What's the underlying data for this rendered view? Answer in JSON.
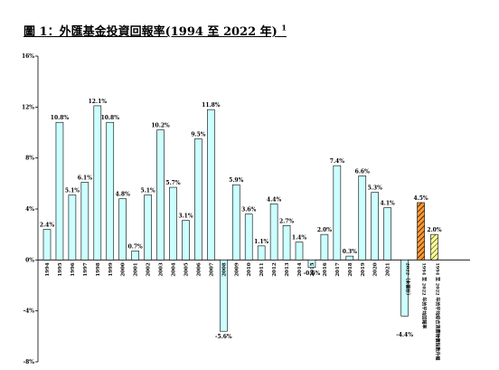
{
  "chart_data": {
    "type": "bar",
    "title": "圖 1：外匯基金投資回報率(1994 至 2022 年)",
    "title_note": "1",
    "ylim": [
      -8,
      16
    ],
    "yticks": [
      -8,
      -4,
      0,
      4,
      8,
      12,
      16
    ],
    "ytick_labels": [
      "-8%",
      "-4%",
      "0%",
      "4%",
      "8%",
      "12%",
      "16%"
    ],
    "grid": false,
    "categories": [
      "1994",
      "1995",
      "1996",
      "1997",
      "1998",
      "1999",
      "2000",
      "2001",
      "2002",
      "2003",
      "2004",
      "2005",
      "2006",
      "2007",
      "2008",
      "2009",
      "2010",
      "2011",
      "2012",
      "2013",
      "2014",
      "2015",
      "2016",
      "2017",
      "2018",
      "2019",
      "2020",
      "2021"
    ],
    "values": [
      2.4,
      10.8,
      5.1,
      6.1,
      12.1,
      10.8,
      4.8,
      0.7,
      5.1,
      10.2,
      5.7,
      3.1,
      9.5,
      11.8,
      -5.6,
      5.9,
      3.6,
      1.1,
      4.4,
      2.7,
      1.4,
      -0.6,
      2.0,
      7.4,
      0.3,
      6.6,
      5.3,
      4.1
    ],
    "value_labels": [
      "2.4%",
      "10.8%",
      "5.1%",
      "6.1%",
      "12.1%",
      "10.8%",
      "4.8%",
      "0.7%",
      "5.1%",
      "10.2%",
      "5.7%",
      "3.1%",
      "9.5%",
      "11.8%",
      "-5.6%",
      "5.9%",
      "3.6%",
      "1.1%",
      "4.4%",
      "2.7%",
      "1.4%",
      "-0.6%",
      "2.0%",
      "7.4%",
      "0.3%",
      "6.6%",
      "5.3%",
      "4.1%"
    ],
    "extra_bars": [
      {
        "category": "2022（未審計）",
        "value": -4.4,
        "value_label": "-4.4%",
        "style": "plain"
      },
      {
        "category": "1994 至 2022 年的平均回報率",
        "value": 4.5,
        "value_label": "4.5%",
        "style": "hatched-orange"
      },
      {
        "category": "1994 至 2022 年的平均綜合消費物價指數升幅",
        "value": 2.0,
        "value_label": "2.0%",
        "style": "hatched-yellow"
      }
    ],
    "colors": {
      "bar_fill": "#ccffff",
      "bar_stroke": "#000000",
      "avg_return_fill": "#ff9933",
      "avg_cpi_fill": "#ffff99",
      "hatch": "#000000"
    }
  }
}
